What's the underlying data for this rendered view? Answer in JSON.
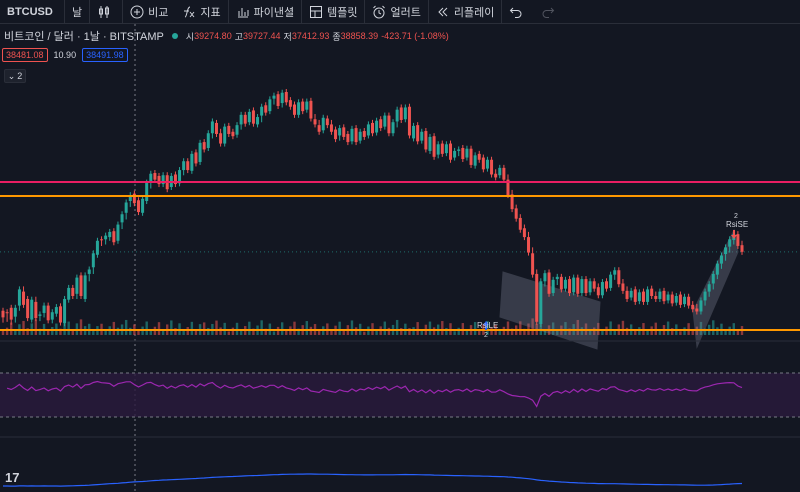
{
  "toolbar": {
    "symbol": "BTCUSD",
    "interval": "날",
    "compare": "비교",
    "indicators": "지표",
    "financials": "파이낸셜",
    "templates": "템플릿",
    "alert": "얼러트",
    "replay": "리플레이"
  },
  "legend": {
    "title": "비트코인 / 달러 · 1날 · BITSTAMP",
    "open_label": "시",
    "open": "39274.80",
    "high_label": "고",
    "high": "39727.44",
    "low_label": "저",
    "low": "37412.93",
    "close_label": "종",
    "close": "38858.39",
    "change": "-423.71 (-1.08%)"
  },
  "badges": {
    "sell": "38481.08",
    "spread": "10.90",
    "buy": "38491.98"
  },
  "collapse_label": "2",
  "annotations": {
    "rsi_le_label": "RsiLE",
    "rsi_le_sub": "2",
    "rsi_se_label": "RsiSE",
    "rsi_se_sub": "2"
  },
  "logo": "17",
  "colors": {
    "background": "#131722",
    "up": "#26a69a",
    "down": "#ef5350",
    "pink_line": "#e91e63",
    "orange_line": "#ff9800",
    "rsi_line": "#9c27b0",
    "rsi_band": "#2a1a3d",
    "lower_line": "#2962ff",
    "channel": "#7b8091"
  },
  "chart_data": {
    "type": "candlestick",
    "candles": [
      [
        0,
        0,
        -1.2,
        -0.9
      ],
      [
        -0.2,
        -0.8,
        -1.1,
        -0.3
      ],
      [
        0.4,
        -0.3,
        -1.5,
        -1.2
      ],
      [
        -0.8,
        -1.2,
        0.2,
        0.4
      ],
      [
        0.7,
        0.4,
        2.7,
        2.9
      ],
      [
        2.6,
        2.9,
        1.2,
        0.8
      ],
      [
        1.6,
        0.8,
        -0.7,
        -1.0
      ],
      [
        -1.2,
        -1.0,
        1.2,
        1.5
      ],
      [
        1.2,
        1.5,
        -0.7,
        -1.0
      ],
      [
        -0.7,
        -1.0,
        -0.8,
        -0.5
      ],
      [
        -0.3,
        -0.5,
        0.4,
        0.7
      ],
      [
        0.7,
        0.7,
        -1.1,
        -1.3
      ],
      [
        -1.2,
        -1.3,
        -0.5,
        -0.2
      ],
      [
        -0.4,
        -0.2,
        0.2,
        0.5
      ],
      [
        0.6,
        0.5,
        -1.4,
        -1.6
      ],
      [
        -1.7,
        -1.6,
        1.3,
        1.6
      ],
      [
        1.5,
        1.6,
        2.8,
        3.1
      ],
      [
        3.1,
        3.1,
        2.3,
        2.0
      ],
      [
        2.3,
        2.0,
        4.2,
        4.5
      ],
      [
        4.8,
        4.5,
        2.3,
        2.0
      ],
      [
        1.6,
        2.0,
        4.4,
        4.8
      ],
      [
        5.0,
        4.4,
        5.4,
        5.6
      ],
      [
        5.9,
        5.4,
        7.6,
        7.8
      ],
      [
        7.6,
        7.6,
        9.2,
        9.5
      ],
      [
        9.7,
        9.2,
        9.4,
        9.6
      ],
      [
        9.7,
        9.4,
        9.9,
        10.2
      ],
      [
        10.0,
        9.9,
        10.5,
        10.7
      ],
      [
        10.8,
        10.5,
        9.6,
        9.3
      ],
      [
        9.5,
        9.6,
        11.5,
        11.7
      ],
      [
        12.0,
        11.5,
        12.8,
        13.1
      ],
      [
        13.3,
        12.8,
        14.5,
        14.7
      ],
      [
        14.9,
        14.5,
        15.5,
        15.7
      ],
      [
        15.9,
        15.5,
        15.0,
        14.6
      ],
      [
        15.0,
        15.0,
        13.7,
        13.4
      ],
      [
        13.3,
        13.7,
        14.9,
        15.2
      ],
      [
        14.9,
        14.9,
        17.0,
        17.4
      ],
      [
        17.6,
        17.0,
        18.4,
        18.6
      ],
      [
        18.7,
        18.4,
        18.2,
        17.8
      ],
      [
        18.3,
        18.2,
        17.5,
        17.2
      ],
      [
        17.2,
        17.5,
        18.1,
        18.4
      ],
      [
        18.4,
        18.1,
        16.8,
        16.5
      ],
      [
        16.8,
        16.8,
        18.1,
        18.3
      ],
      [
        18.5,
        18.1,
        17.4,
        17.2
      ],
      [
        17.3,
        17.4,
        18.8,
        19.1
      ],
      [
        19.1,
        18.8,
        20.1,
        20.3
      ],
      [
        20.3,
        20.1,
        19.3,
        19.1
      ],
      [
        19.0,
        19.3,
        21.1,
        21.3
      ],
      [
        21.5,
        21.1,
        20.2,
        20.0
      ],
      [
        20.2,
        20.2,
        22.6,
        22.8
      ],
      [
        22.9,
        22.6,
        22.1,
        21.9
      ],
      [
        22.1,
        22.1,
        23.8,
        24.1
      ],
      [
        24.1,
        23.8,
        25.5,
        25.7
      ],
      [
        25.5,
        25.5,
        24.3,
        24.0
      ],
      [
        24.1,
        24.3,
        23.0,
        22.7
      ],
      [
        22.7,
        23.0,
        24.8,
        25.0
      ],
      [
        25.1,
        24.8,
        24.3,
        24.0
      ],
      [
        24.3,
        24.3,
        24.0,
        23.7
      ],
      [
        23.9,
        24.0,
        25.0,
        25.2
      ],
      [
        25.3,
        25.0,
        26.4,
        26.6
      ],
      [
        26.6,
        26.4,
        25.6,
        25.4
      ],
      [
        25.6,
        25.6,
        26.7,
        27.0
      ],
      [
        27.2,
        26.7,
        25.6,
        25.4
      ],
      [
        25.3,
        25.6,
        26.0,
        26.3
      ],
      [
        26.5,
        26.0,
        27.4,
        27.7
      ],
      [
        27.9,
        27.4,
        27.2,
        26.9
      ],
      [
        27.1,
        27.2,
        28.4,
        28.7
      ],
      [
        28.8,
        28.4,
        28.9,
        29.2
      ],
      [
        29.4,
        28.9,
        28.0,
        27.8
      ],
      [
        28.2,
        28.0,
        29.4,
        29.6
      ],
      [
        29.7,
        29.4,
        28.5,
        28.3
      ],
      [
        28.6,
        28.5,
        28.0,
        27.7
      ],
      [
        28.0,
        28.0,
        26.9,
        26.6
      ],
      [
        26.6,
        26.9,
        28.0,
        28.3
      ],
      [
        28.4,
        28.0,
        27.3,
        27.1
      ],
      [
        27.3,
        27.3,
        28.1,
        28.4
      ],
      [
        28.5,
        28.1,
        26.3,
        26.1
      ],
      [
        26.0,
        26.3,
        25.5,
        25.3
      ],
      [
        25.2,
        25.5,
        24.6,
        24.3
      ],
      [
        24.5,
        24.6,
        26.0,
        26.2
      ],
      [
        26.1,
        26.0,
        25.5,
        25.2
      ],
      [
        25.3,
        25.5,
        24.6,
        24.3
      ],
      [
        24.6,
        24.6,
        23.5,
        23.3
      ],
      [
        23.8,
        23.5,
        24.6,
        24.8
      ],
      [
        24.9,
        24.6,
        23.9,
        23.6
      ],
      [
        24.0,
        23.9,
        23.2,
        22.9
      ],
      [
        23.0,
        23.2,
        24.5,
        24.7
      ],
      [
        24.8,
        24.5,
        23.1,
        22.9
      ],
      [
        23.1,
        23.1,
        24.1,
        24.3
      ],
      [
        24.4,
        24.1,
        23.8,
        23.6
      ],
      [
        23.8,
        23.8,
        25.0,
        25.3
      ],
      [
        25.5,
        25.0,
        24.3,
        24.1
      ],
      [
        24.2,
        24.3,
        25.5,
        25.8
      ],
      [
        26.0,
        25.5,
        25.0,
        24.8
      ],
      [
        25.0,
        25.0,
        26.2,
        26.5
      ],
      [
        26.5,
        26.2,
        24.4,
        24.1
      ],
      [
        24.1,
        24.4,
        25.3,
        25.6
      ],
      [
        25.7,
        25.3,
        27.0,
        27.3
      ],
      [
        27.6,
        27.0,
        26.2,
        25.9
      ],
      [
        26.0,
        26.2,
        27.3,
        27.6
      ],
      [
        27.7,
        27.3,
        24.1,
        23.8
      ],
      [
        23.4,
        24.1,
        24.8,
        25.1
      ],
      [
        25.2,
        24.8,
        23.2,
        23.0
      ],
      [
        23.1,
        23.2,
        24.0,
        24.3
      ],
      [
        24.4,
        24.0,
        22.1,
        21.9
      ],
      [
        21.7,
        22.1,
        23.3,
        23.6
      ],
      [
        23.7,
        23.3,
        21.1,
        20.9
      ],
      [
        21.2,
        21.1,
        22.3,
        22.6
      ],
      [
        22.7,
        22.3,
        21.5,
        21.3
      ],
      [
        21.4,
        21.5,
        22.3,
        22.6
      ],
      [
        22.7,
        22.3,
        20.8,
        20.5
      ],
      [
        20.8,
        20.8,
        21.4,
        21.7
      ],
      [
        21.7,
        21.4,
        21.6,
        21.9
      ],
      [
        22.1,
        21.6,
        20.8,
        20.6
      ],
      [
        20.8,
        20.8,
        21.7,
        22.0
      ],
      [
        22.0,
        21.7,
        20.1,
        19.8
      ],
      [
        19.7,
        20.1,
        20.9,
        21.1
      ],
      [
        21.3,
        20.9,
        20.8,
        20.5
      ],
      [
        20.8,
        20.8,
        19.4,
        19.2
      ],
      [
        19.3,
        19.4,
        20.3,
        20.5
      ],
      [
        20.5,
        20.3,
        18.8,
        18.5
      ],
      [
        18.6,
        18.8,
        18.4,
        18.1
      ],
      [
        18.4,
        18.4,
        19.1,
        19.4
      ],
      [
        19.4,
        19.1,
        18.1,
        17.8
      ],
      [
        17.8,
        18.1,
        16.0,
        15.7
      ],
      [
        15.8,
        16.0,
        14.0,
        13.8
      ],
      [
        13.9,
        14.0,
        12.7,
        12.5
      ],
      [
        12.6,
        12.7,
        11.3,
        11.0
      ],
      [
        11.2,
        11.3,
        10.3,
        10.0
      ],
      [
        10.0,
        10.3,
        8.2,
        7.9
      ],
      [
        7.8,
        8.2,
        5.2,
        4.9
      ],
      [
        5.0,
        5.2,
        1.0,
        -1.5
      ],
      [
        -1.8,
        1.0,
        3.7,
        4.0
      ],
      [
        4.0,
        3.7,
        4.8,
        5.1
      ],
      [
        5.2,
        4.8,
        2.6,
        2.3
      ],
      [
        2.4,
        2.6,
        3.9,
        4.2
      ],
      [
        4.3,
        3.9,
        4.3,
        4.6
      ],
      [
        4.6,
        4.3,
        3.1,
        2.9
      ],
      [
        3.0,
        3.1,
        3.9,
        4.2
      ],
      [
        4.3,
        3.9,
        2.7,
        2.4
      ],
      [
        2.5,
        2.7,
        4.3,
        4.5
      ],
      [
        4.5,
        4.3,
        2.6,
        2.3
      ],
      [
        2.4,
        2.6,
        4.0,
        4.3
      ],
      [
        4.3,
        4.0,
        2.7,
        2.4
      ],
      [
        2.5,
        2.7,
        3.7,
        4.0
      ],
      [
        4.0,
        3.7,
        3.3,
        3.0
      ],
      [
        3.2,
        3.3,
        2.4,
        2.1
      ],
      [
        2.1,
        2.4,
        3.6,
        3.9
      ],
      [
        4.0,
        3.6,
        3.3,
        3.0
      ],
      [
        3.1,
        3.3,
        4.6,
        4.9
      ],
      [
        4.9,
        4.6,
        5.2,
        5.5
      ],
      [
        5.5,
        5.2,
        3.9,
        3.6
      ],
      [
        3.7,
        3.9,
        2.9,
        2.7
      ],
      [
        2.7,
        2.9,
        1.9,
        1.6
      ],
      [
        1.8,
        1.9,
        2.4,
        2.7
      ],
      [
        2.9,
        2.4,
        1.5,
        1.2
      ],
      [
        1.3,
        1.5,
        2.2,
        2.5
      ],
      [
        2.6,
        2.2,
        1.4,
        1.2
      ],
      [
        1.2,
        1.4,
        2.7,
        2.9
      ],
      [
        3.0,
        2.7,
        2.2,
        2.0
      ],
      [
        2.0,
        2.2,
        1.9,
        1.6
      ],
      [
        1.6,
        1.9,
        2.3,
        2.6
      ],
      [
        2.7,
        2.3,
        1.5,
        1.3
      ],
      [
        1.4,
        1.5,
        1.9,
        2.2
      ],
      [
        2.2,
        1.9,
        1.2,
        1.0
      ],
      [
        1.1,
        1.2,
        1.7,
        2.0
      ],
      [
        2.2,
        1.7,
        1.1,
        0.8
      ],
      [
        0.9,
        1.1,
        1.6,
        1.9
      ],
      [
        1.9,
        1.6,
        0.9,
        0.7
      ],
      [
        0.8,
        0.9,
        0.5,
        0.2
      ],
      [
        0.3,
        0.5,
        0.2,
        -0.1
      ],
      [
        -0.1,
        0.2,
        1.1,
        1.4
      ],
      [
        1.4,
        1.1,
        2.3,
        2.6
      ],
      [
        2.6,
        2.3,
        3.3,
        3.6
      ],
      [
        3.7,
        3.3,
        4.7,
        5.0
      ],
      [
        4.9,
        4.7,
        6.1,
        6.4
      ],
      [
        6.4,
        6.1,
        7.2,
        7.5
      ],
      [
        7.7,
        7.2,
        8.3,
        8.6
      ],
      [
        8.7,
        8.3,
        9.4,
        9.7
      ],
      [
        9.6,
        9.4,
        10.1,
        10.4
      ],
      [
        10.4,
        10.1,
        9.1,
        8.8
      ],
      [
        8.9,
        9.1,
        8.3,
        8.0
      ]
    ],
    "horizontal_lines": [
      {
        "color": "#e91e63",
        "level": "upper"
      },
      {
        "color": "#ff9800",
        "level": "middle"
      },
      {
        "color": "#ff9800",
        "level": "lower"
      }
    ],
    "title": "",
    "xlabel": "",
    "ylabel": ""
  }
}
